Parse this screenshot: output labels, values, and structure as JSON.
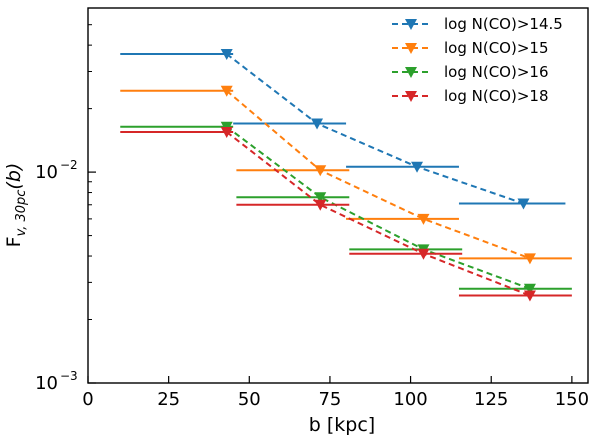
{
  "chart_data": {
    "type": "line",
    "title": "",
    "xlabel": "b [kpc]",
    "ylabel": {
      "base": "F",
      "subscript": "v, 30pc",
      "arg": "(b)"
    },
    "xlim": [
      0,
      155
    ],
    "ylim": [
      0.001,
      0.06
    ],
    "yscale": "log",
    "grid": false,
    "legend_position": "top-right",
    "x_ticks": [
      {
        "value": 0,
        "label": "0"
      },
      {
        "value": 25,
        "label": "25"
      },
      {
        "value": 50,
        "label": "50"
      },
      {
        "value": 75,
        "label": "75"
      },
      {
        "value": 100,
        "label": "100"
      },
      {
        "value": 125,
        "label": "125"
      },
      {
        "value": 150,
        "label": "150"
      }
    ],
    "y_ticks": [
      {
        "value": 0.001,
        "base": "10",
        "exp": "−3"
      },
      {
        "value": 0.01,
        "base": "10",
        "exp": "−2"
      }
    ],
    "series": [
      {
        "name": "log N(CO)>14.5",
        "color": "#1f77b4",
        "points": [
          {
            "x": 43,
            "y": 0.0363,
            "xmin": 10,
            "xmax": 45
          },
          {
            "x": 71,
            "y": 0.017,
            "xmin": 45,
            "xmax": 80
          },
          {
            "x": 102,
            "y": 0.0106,
            "xmin": 80,
            "xmax": 115
          },
          {
            "x": 135,
            "y": 0.0071,
            "xmin": 115,
            "xmax": 148
          }
        ]
      },
      {
        "name": "log N(CO)>15",
        "color": "#ff7f0e",
        "points": [
          {
            "x": 43,
            "y": 0.0243,
            "xmin": 10,
            "xmax": 45
          },
          {
            "x": 72,
            "y": 0.0102,
            "xmin": 46,
            "xmax": 81
          },
          {
            "x": 104,
            "y": 0.006,
            "xmin": 80,
            "xmax": 115
          },
          {
            "x": 137,
            "y": 0.0039,
            "xmin": 115,
            "xmax": 150
          }
        ]
      },
      {
        "name": "log N(CO)>16",
        "color": "#2ca02c",
        "points": [
          {
            "x": 43,
            "y": 0.0164,
            "xmin": 10,
            "xmax": 45
          },
          {
            "x": 72,
            "y": 0.0076,
            "xmin": 46,
            "xmax": 81
          },
          {
            "x": 104,
            "y": 0.0043,
            "xmin": 81,
            "xmax": 116
          },
          {
            "x": 137,
            "y": 0.0028,
            "xmin": 115,
            "xmax": 150
          }
        ]
      },
      {
        "name": "log N(CO)>18",
        "color": "#d62728",
        "points": [
          {
            "x": 43,
            "y": 0.0155,
            "xmin": 10,
            "xmax": 45
          },
          {
            "x": 72,
            "y": 0.007,
            "xmin": 46,
            "xmax": 81
          },
          {
            "x": 104,
            "y": 0.0041,
            "xmin": 81,
            "xmax": 116
          },
          {
            "x": 137,
            "y": 0.0026,
            "xmin": 115,
            "xmax": 150
          }
        ]
      }
    ]
  }
}
